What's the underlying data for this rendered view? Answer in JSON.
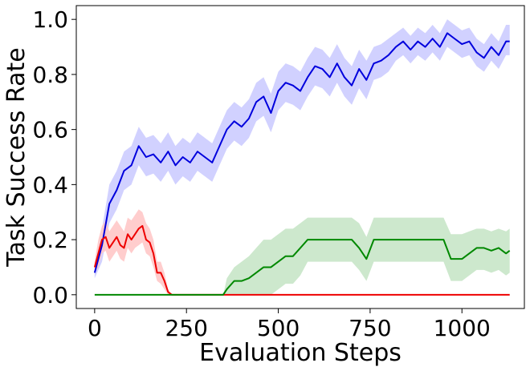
{
  "chart_data": {
    "type": "line",
    "title": "",
    "xlabel": "Evaluation Steps",
    "ylabel": "Task Success Rate",
    "xlim": [
      -50,
      1170
    ],
    "ylim": [
      -0.05,
      1.05
    ],
    "xticks": [
      0,
      250,
      500,
      750,
      1000
    ],
    "yticks": [
      0.0,
      0.2,
      0.4,
      0.6,
      0.8,
      1.0
    ],
    "xtick_labels": [
      "0",
      "250",
      "500",
      "750",
      "1000"
    ],
    "ytick_labels": [
      "0.0",
      "0.2",
      "0.4",
      "0.6",
      "0.8",
      "1.0"
    ],
    "grid": false,
    "legend": "none",
    "series": [
      {
        "color": "#0000dd",
        "band_color": "#ccccff",
        "x": [
          0,
          20,
          40,
          60,
          80,
          100,
          120,
          140,
          160,
          180,
          200,
          220,
          240,
          260,
          280,
          300,
          320,
          340,
          360,
          380,
          400,
          420,
          440,
          460,
          480,
          500,
          520,
          540,
          560,
          580,
          600,
          620,
          640,
          660,
          680,
          700,
          720,
          740,
          760,
          780,
          800,
          820,
          840,
          860,
          880,
          900,
          920,
          940,
          960,
          980,
          1000,
          1020,
          1040,
          1060,
          1080,
          1100,
          1120,
          1130
        ],
        "y": [
          0.08,
          0.18,
          0.33,
          0.38,
          0.45,
          0.47,
          0.54,
          0.5,
          0.51,
          0.48,
          0.52,
          0.47,
          0.5,
          0.48,
          0.52,
          0.5,
          0.48,
          0.54,
          0.6,
          0.63,
          0.61,
          0.64,
          0.7,
          0.72,
          0.66,
          0.74,
          0.77,
          0.76,
          0.74,
          0.79,
          0.83,
          0.82,
          0.79,
          0.84,
          0.79,
          0.76,
          0.82,
          0.78,
          0.84,
          0.85,
          0.87,
          0.9,
          0.92,
          0.89,
          0.92,
          0.9,
          0.93,
          0.9,
          0.95,
          0.93,
          0.91,
          0.92,
          0.88,
          0.86,
          0.9,
          0.87,
          0.92,
          0.92
        ],
        "lower": [
          0.06,
          0.12,
          0.26,
          0.31,
          0.38,
          0.4,
          0.47,
          0.43,
          0.44,
          0.41,
          0.45,
          0.4,
          0.43,
          0.41,
          0.45,
          0.43,
          0.41,
          0.47,
          0.53,
          0.56,
          0.54,
          0.57,
          0.63,
          0.65,
          0.59,
          0.67,
          0.7,
          0.69,
          0.67,
          0.72,
          0.76,
          0.75,
          0.72,
          0.77,
          0.72,
          0.69,
          0.75,
          0.71,
          0.78,
          0.79,
          0.81,
          0.85,
          0.87,
          0.84,
          0.87,
          0.85,
          0.88,
          0.85,
          0.9,
          0.88,
          0.86,
          0.87,
          0.83,
          0.81,
          0.85,
          0.82,
          0.87,
          0.87
        ],
        "upper": [
          0.12,
          0.24,
          0.4,
          0.45,
          0.52,
          0.54,
          0.61,
          0.57,
          0.58,
          0.55,
          0.59,
          0.54,
          0.57,
          0.55,
          0.59,
          0.57,
          0.55,
          0.61,
          0.67,
          0.7,
          0.68,
          0.71,
          0.77,
          0.79,
          0.73,
          0.81,
          0.84,
          0.83,
          0.81,
          0.86,
          0.9,
          0.89,
          0.86,
          0.91,
          0.86,
          0.83,
          0.89,
          0.85,
          0.9,
          0.91,
          0.93,
          0.95,
          0.97,
          0.94,
          0.97,
          0.95,
          0.98,
          0.95,
          1.0,
          0.98,
          0.96,
          0.97,
          0.93,
          0.91,
          0.95,
          0.92,
          0.98,
          0.98
        ]
      },
      {
        "color": "#ee0000",
        "band_color": "#ffc8c8",
        "x": [
          0,
          10,
          20,
          30,
          40,
          50,
          60,
          70,
          80,
          90,
          100,
          110,
          120,
          130,
          140,
          150,
          160,
          170,
          180,
          190,
          200,
          210,
          220,
          300,
          400,
          500,
          600,
          700,
          800,
          900,
          1000,
          1100,
          1130
        ],
        "y": [
          0.1,
          0.15,
          0.2,
          0.21,
          0.17,
          0.19,
          0.21,
          0.18,
          0.17,
          0.22,
          0.2,
          0.22,
          0.24,
          0.25,
          0.2,
          0.19,
          0.15,
          0.08,
          0.08,
          0.05,
          0.01,
          0.0,
          0.0,
          0.0,
          0.0,
          0.0,
          0.0,
          0.0,
          0.0,
          0.0,
          0.0,
          0.0,
          0.0
        ],
        "lower": [
          0.08,
          0.1,
          0.15,
          0.16,
          0.12,
          0.14,
          0.16,
          0.13,
          0.12,
          0.17,
          0.15,
          0.17,
          0.18,
          0.19,
          0.15,
          0.14,
          0.1,
          0.05,
          0.04,
          0.02,
          0.0,
          0.0,
          0.0,
          0.0,
          0.0,
          0.0,
          0.0,
          0.0,
          0.0,
          0.0,
          0.0,
          0.0,
          0.0
        ],
        "upper": [
          0.12,
          0.2,
          0.25,
          0.27,
          0.23,
          0.25,
          0.27,
          0.25,
          0.23,
          0.28,
          0.27,
          0.29,
          0.31,
          0.3,
          0.26,
          0.24,
          0.2,
          0.12,
          0.12,
          0.08,
          0.02,
          0.0,
          0.0,
          0.0,
          0.0,
          0.0,
          0.0,
          0.0,
          0.0,
          0.0,
          0.0,
          0.0,
          0.0
        ]
      },
      {
        "color": "#008800",
        "band_color": "#c8e6c8",
        "x": [
          0,
          100,
          200,
          300,
          350,
          360,
          380,
          400,
          420,
          440,
          460,
          480,
          500,
          520,
          540,
          560,
          580,
          600,
          620,
          640,
          660,
          680,
          700,
          720,
          740,
          760,
          780,
          800,
          850,
          900,
          950,
          970,
          1000,
          1020,
          1040,
          1060,
          1080,
          1100,
          1120,
          1130
        ],
        "y": [
          0.0,
          0.0,
          0.0,
          0.0,
          0.0,
          0.02,
          0.05,
          0.05,
          0.06,
          0.08,
          0.1,
          0.1,
          0.12,
          0.14,
          0.14,
          0.17,
          0.2,
          0.2,
          0.2,
          0.2,
          0.2,
          0.2,
          0.2,
          0.17,
          0.13,
          0.2,
          0.2,
          0.2,
          0.2,
          0.2,
          0.2,
          0.13,
          0.13,
          0.15,
          0.17,
          0.17,
          0.16,
          0.17,
          0.15,
          0.16
        ],
        "lower": [
          0.0,
          0.0,
          0.0,
          0.0,
          0.0,
          0.0,
          0.0,
          0.0,
          0.0,
          0.0,
          0.0,
          0.0,
          0.02,
          0.04,
          0.04,
          0.07,
          0.12,
          0.12,
          0.12,
          0.12,
          0.12,
          0.12,
          0.12,
          0.09,
          0.05,
          0.12,
          0.12,
          0.12,
          0.12,
          0.12,
          0.12,
          0.05,
          0.05,
          0.07,
          0.09,
          0.09,
          0.08,
          0.09,
          0.07,
          0.08
        ],
        "upper": [
          0.0,
          0.0,
          0.0,
          0.0,
          0.0,
          0.06,
          0.1,
          0.12,
          0.14,
          0.17,
          0.2,
          0.2,
          0.22,
          0.24,
          0.24,
          0.26,
          0.28,
          0.28,
          0.28,
          0.28,
          0.28,
          0.28,
          0.28,
          0.26,
          0.21,
          0.28,
          0.28,
          0.28,
          0.28,
          0.28,
          0.28,
          0.22,
          0.22,
          0.23,
          0.24,
          0.24,
          0.23,
          0.24,
          0.23,
          0.24
        ]
      }
    ]
  }
}
